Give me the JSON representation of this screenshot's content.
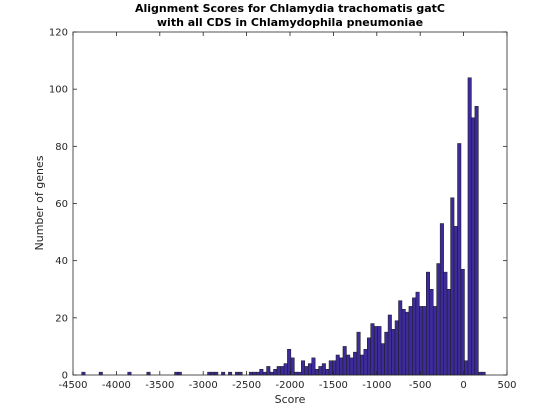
{
  "chart_data": {
    "type": "bar",
    "title_line1": "Alignment Scores for Chlamydia trachomatis gatC",
    "title_line2": "with all CDS in Chlamydophila pneumoniae",
    "xlabel": "Score",
    "ylabel": "Number of genes",
    "xlim": [
      -4500,
      500
    ],
    "ylim": [
      0,
      120
    ],
    "xticks": [
      "-4500",
      "-4000",
      "-3500",
      "-3000",
      "-2500",
      "-2000",
      "-1500",
      "-1000",
      "-500",
      "0",
      "500"
    ],
    "yticks": [
      "0",
      "20",
      "40",
      "60",
      "80",
      "100",
      "120"
    ],
    "grid": false,
    "bar_color": "#3d2b99",
    "bin_width": 40,
    "bins": [
      [
        -4380,
        1
      ],
      [
        -4180,
        1
      ],
      [
        -3850,
        1
      ],
      [
        -3630,
        1
      ],
      [
        -3310,
        1
      ],
      [
        -3270,
        1
      ],
      [
        -2930,
        1
      ],
      [
        -2890,
        1
      ],
      [
        -2850,
        1
      ],
      [
        -2770,
        1
      ],
      [
        -2690,
        1
      ],
      [
        -2610,
        1
      ],
      [
        -2570,
        1
      ],
      [
        -2450,
        1
      ],
      [
        -2410,
        1
      ],
      [
        -2370,
        1
      ],
      [
        -2330,
        2
      ],
      [
        -2290,
        1
      ],
      [
        -2250,
        3
      ],
      [
        -2210,
        1
      ],
      [
        -2170,
        2
      ],
      [
        -2130,
        3
      ],
      [
        -2090,
        3
      ],
      [
        -2050,
        4
      ],
      [
        -2010,
        9
      ],
      [
        -1970,
        6
      ],
      [
        -1930,
        1
      ],
      [
        -1890,
        1
      ],
      [
        -1850,
        5
      ],
      [
        -1810,
        3
      ],
      [
        -1770,
        4
      ],
      [
        -1730,
        6
      ],
      [
        -1690,
        2
      ],
      [
        -1650,
        3
      ],
      [
        -1610,
        4
      ],
      [
        -1570,
        2
      ],
      [
        -1530,
        5
      ],
      [
        -1490,
        5
      ],
      [
        -1450,
        7
      ],
      [
        -1410,
        6
      ],
      [
        -1370,
        10
      ],
      [
        -1330,
        7
      ],
      [
        -1290,
        6
      ],
      [
        -1250,
        8
      ],
      [
        -1210,
        15
      ],
      [
        -1170,
        7
      ],
      [
        -1130,
        9
      ],
      [
        -1090,
        13
      ],
      [
        -1050,
        18
      ],
      [
        -1010,
        17
      ],
      [
        -970,
        17
      ],
      [
        -930,
        11
      ],
      [
        -890,
        15
      ],
      [
        -850,
        21
      ],
      [
        -810,
        16
      ],
      [
        -770,
        19
      ],
      [
        -730,
        26
      ],
      [
        -690,
        23
      ],
      [
        -650,
        22
      ],
      [
        -610,
        24
      ],
      [
        -570,
        27
      ],
      [
        -530,
        29
      ],
      [
        -490,
        24
      ],
      [
        -450,
        24
      ],
      [
        -410,
        36
      ],
      [
        -370,
        30
      ],
      [
        -330,
        24
      ],
      [
        -290,
        39
      ],
      [
        -250,
        53
      ],
      [
        -210,
        36
      ],
      [
        -170,
        30
      ],
      [
        -130,
        62
      ],
      [
        -90,
        52
      ],
      [
        -50,
        81
      ],
      [
        -10,
        37
      ],
      [
        30,
        5
      ],
      [
        70,
        104
      ],
      [
        110,
        90
      ],
      [
        150,
        94
      ],
      [
        190,
        1
      ],
      [
        230,
        1
      ]
    ]
  }
}
